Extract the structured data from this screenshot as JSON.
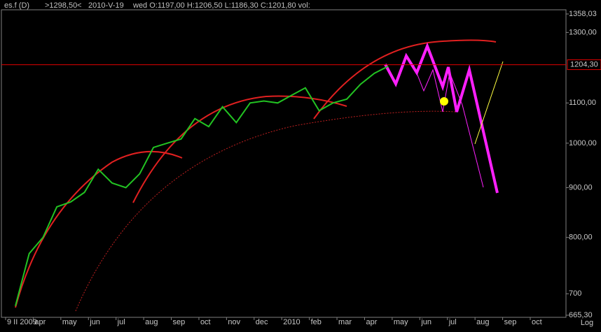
{
  "header": {
    "symbol": "es.f (D)",
    "marker": ">1298,50<",
    "date": "2010-V-19",
    "ohlc": "wed O:1197,00 H:1206,50 L:1186,30 C:1201,80 vol:"
  },
  "chart_data": {
    "type": "line",
    "log": true,
    "scale_label": "Log",
    "categories": [
      "9 II 2009",
      null,
      "apr",
      null,
      "may",
      null,
      "jun",
      null,
      "jul",
      null,
      "aug",
      null,
      "sep",
      null,
      "oct",
      null,
      "nov",
      null,
      "dec",
      null,
      "2010",
      null,
      "feb",
      null,
      "mar",
      null,
      "apr",
      null,
      "may",
      null,
      "jun",
      null,
      "jul",
      null,
      "aug",
      null,
      "sep",
      null,
      "oct"
    ],
    "series": [
      {
        "color": "#22c322",
        "values": [
          680,
          770,
          800,
          860,
          870,
          890,
          940,
          910,
          900,
          930,
          990,
          1000,
          1010,
          1060,
          1040,
          1090,
          1050,
          1100,
          1105,
          1100,
          1120,
          1140,
          1080,
          1100,
          1110,
          1150,
          1180,
          1200,
          null,
          null,
          null,
          null,
          null,
          null,
          null,
          null,
          null,
          null,
          null
        ]
      }
    ],
    "ylim": [
      665.3,
      1358.03
    ],
    "yticks": [
      {
        "value": 665.3,
        "label": "665,30"
      },
      700,
      {
        "value": 800,
        "label": "800,00"
      },
      {
        "value": 900,
        "label": "900,00"
      },
      {
        "value": 1000,
        "label": "1000,00"
      },
      {
        "value": 1100,
        "label": "1100,00"
      },
      {
        "value": 1300,
        "label": "1300,00"
      },
      {
        "value": 1358.03,
        "label": "1358,03"
      }
    ],
    "hline": {
      "value": 1204.3,
      "label": "1204,30",
      "color": "#e00000"
    }
  }
}
